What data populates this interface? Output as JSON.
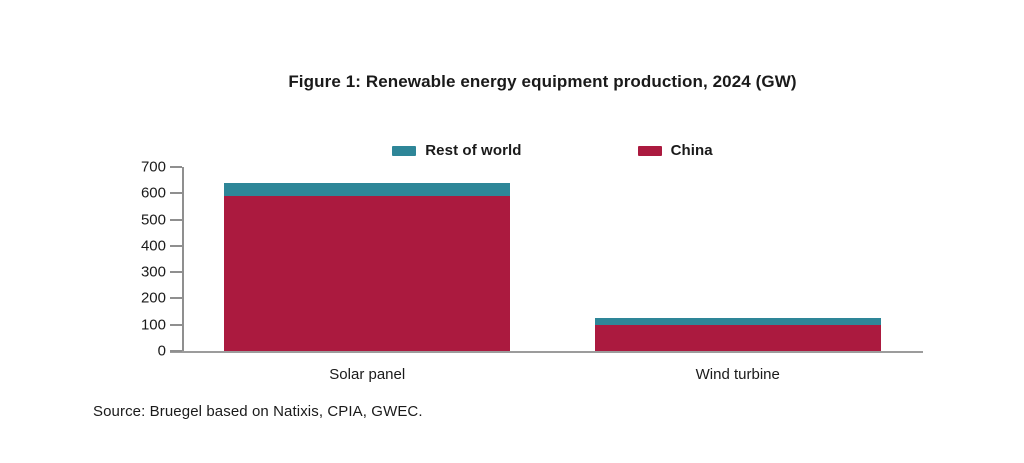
{
  "figure": {
    "title": "Figure 1: Renewable energy equipment production, 2024 (GW)",
    "source": "Source: Bruegel based on Natixis, CPIA, GWEC."
  },
  "chart_data": {
    "type": "bar",
    "stacked": true,
    "title": "Figure 1: Renewable energy equipment production, 2024 (GW)",
    "categories": [
      "Solar panel",
      "Wind turbine"
    ],
    "series": [
      {
        "name": "China",
        "color": "#AB1A3F",
        "values": [
          588,
          100
        ]
      },
      {
        "name": "Rest of world",
        "color": "#2E8698",
        "values": [
          52,
          25
        ]
      }
    ],
    "legend_order": [
      "Rest of world",
      "China"
    ],
    "legend_position": "top",
    "xlabel": "",
    "ylabel": "",
    "ylim": [
      0,
      700
    ],
    "ytick_step": 100,
    "grid": false,
    "axis_color": "#8f8f8f",
    "baseline_color": "#9c9c9c",
    "source": "Source: Bruegel based on Natixis, CPIA, GWEC."
  }
}
